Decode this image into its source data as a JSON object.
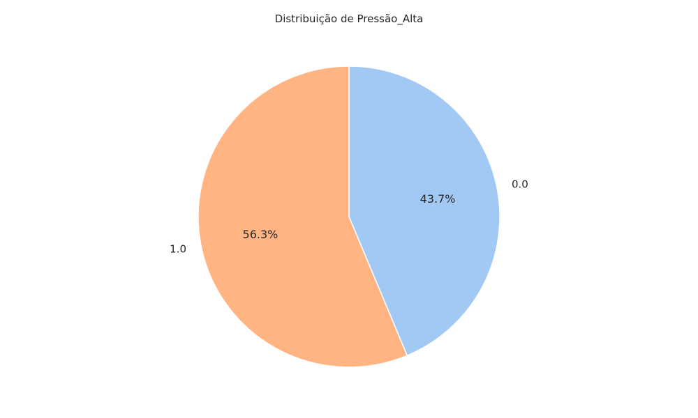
{
  "chart_data": {
    "type": "pie",
    "title": "Distribuição de Pressão_Alta",
    "start_angle_deg": 90,
    "direction": "clockwise",
    "edge_color": "#ffffff",
    "slices": [
      {
        "label": "0.0",
        "value": 43.7,
        "pct_label": "43.7%",
        "color": "#a1c9f4"
      },
      {
        "label": "1.0",
        "value": 56.3,
        "pct_label": "56.3%",
        "color": "#ffb482"
      }
    ]
  }
}
